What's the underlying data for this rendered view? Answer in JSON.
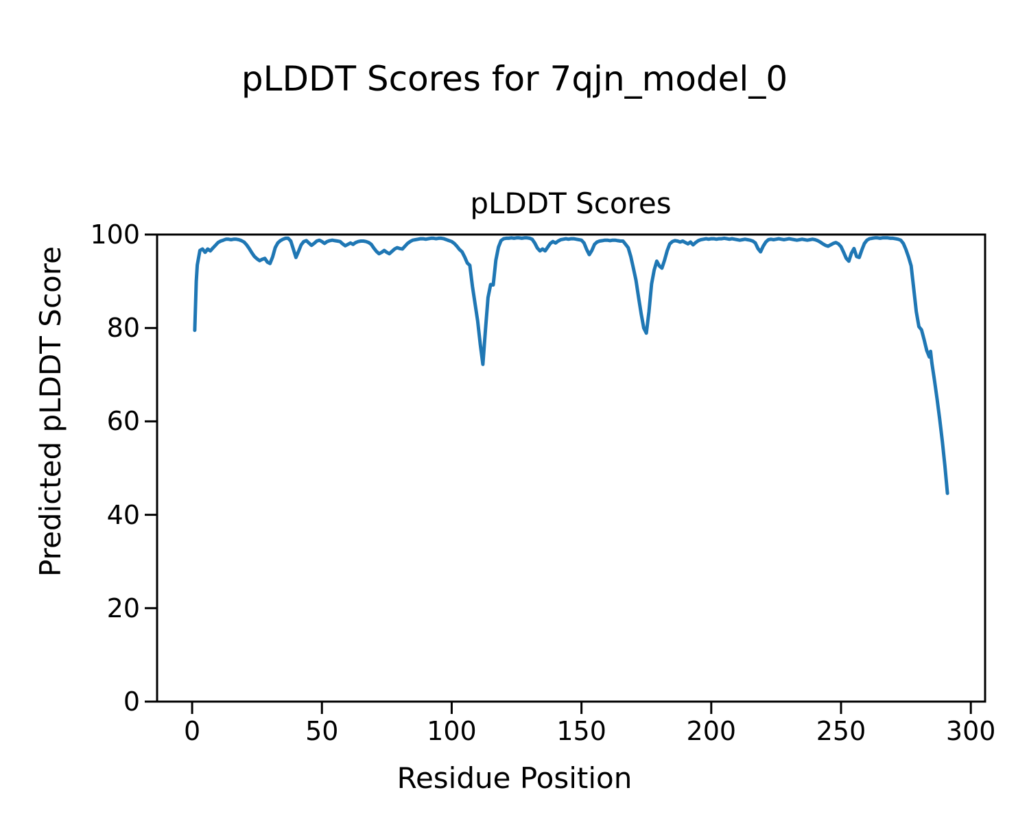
{
  "chart_data": {
    "type": "line",
    "suptitle": "pLDDT Scores for 7qjn_model_0",
    "title": "pLDDT Scores",
    "xlabel": "Residue Position",
    "ylabel": "Predicted pLDDT Score",
    "xlim": [
      -13.5,
      305.5
    ],
    "ylim": [
      0,
      100
    ],
    "xticks": [
      0,
      50,
      100,
      150,
      200,
      250,
      300
    ],
    "yticks": [
      0,
      20,
      40,
      60,
      80,
      100
    ],
    "grid": false,
    "legend": null,
    "line_color": "#1f77b4",
    "axis_color": "#000000",
    "series": [
      {
        "name": "pLDDT",
        "points": [
          [
            1,
            79.5
          ],
          [
            1.6,
            90.0
          ],
          [
            2,
            93.5
          ],
          [
            3,
            96.6
          ],
          [
            4,
            96.9
          ],
          [
            5,
            96.2
          ],
          [
            6,
            96.9
          ],
          [
            7,
            96.5
          ],
          [
            8,
            97.1
          ],
          [
            9,
            97.7
          ],
          [
            10,
            98.3
          ],
          [
            11,
            98.6
          ],
          [
            12,
            98.8
          ],
          [
            13,
            99.0
          ],
          [
            14,
            99.0
          ],
          [
            15,
            98.9
          ],
          [
            16,
            99.0
          ],
          [
            17,
            99.0
          ],
          [
            18,
            98.9
          ],
          [
            19,
            98.7
          ],
          [
            20,
            98.4
          ],
          [
            21,
            97.8
          ],
          [
            22,
            97.0
          ],
          [
            23,
            96.1
          ],
          [
            24,
            95.3
          ],
          [
            25,
            94.8
          ],
          [
            26,
            94.4
          ],
          [
            27,
            94.7
          ],
          [
            28,
            94.9
          ],
          [
            29,
            94.1
          ],
          [
            30,
            93.8
          ],
          [
            31,
            95.2
          ],
          [
            32,
            97.2
          ],
          [
            33,
            98.2
          ],
          [
            34,
            98.7
          ],
          [
            35,
            99.0
          ],
          [
            36,
            99.2
          ],
          [
            37,
            99.2
          ],
          [
            38,
            98.6
          ],
          [
            39,
            96.9
          ],
          [
            40,
            95.1
          ],
          [
            41,
            96.4
          ],
          [
            42,
            97.8
          ],
          [
            43,
            98.5
          ],
          [
            44,
            98.7
          ],
          [
            45,
            98.2
          ],
          [
            46,
            97.7
          ],
          [
            47,
            98.1
          ],
          [
            48,
            98.6
          ],
          [
            49,
            98.8
          ],
          [
            50,
            98.5
          ],
          [
            51,
            98.1
          ],
          [
            52,
            98.5
          ],
          [
            53,
            98.7
          ],
          [
            54,
            98.8
          ],
          [
            55,
            98.7
          ],
          [
            56,
            98.6
          ],
          [
            57,
            98.5
          ],
          [
            58,
            98.0
          ],
          [
            59,
            97.6
          ],
          [
            60,
            97.9
          ],
          [
            61,
            98.2
          ],
          [
            62,
            97.9
          ],
          [
            63,
            98.3
          ],
          [
            64,
            98.5
          ],
          [
            65,
            98.6
          ],
          [
            66,
            98.6
          ],
          [
            67,
            98.5
          ],
          [
            68,
            98.3
          ],
          [
            69,
            97.9
          ],
          [
            70,
            97.1
          ],
          [
            71,
            96.4
          ],
          [
            72,
            95.9
          ],
          [
            73,
            96.2
          ],
          [
            74,
            96.6
          ],
          [
            75,
            96.2
          ],
          [
            76,
            95.9
          ],
          [
            77,
            96.4
          ],
          [
            78,
            96.9
          ],
          [
            79,
            97.2
          ],
          [
            80,
            97.0
          ],
          [
            81,
            96.9
          ],
          [
            82,
            97.5
          ],
          [
            83,
            98.1
          ],
          [
            84,
            98.5
          ],
          [
            85,
            98.8
          ],
          [
            86,
            98.9
          ],
          [
            87,
            99.0
          ],
          [
            88,
            99.1
          ],
          [
            89,
            99.1
          ],
          [
            90,
            99.0
          ],
          [
            91,
            99.1
          ],
          [
            92,
            99.2
          ],
          [
            93,
            99.2
          ],
          [
            94,
            99.1
          ],
          [
            95,
            99.2
          ],
          [
            96,
            99.2
          ],
          [
            97,
            99.1
          ],
          [
            98,
            98.9
          ],
          [
            99,
            98.7
          ],
          [
            100,
            98.5
          ],
          [
            101,
            98.1
          ],
          [
            102,
            97.5
          ],
          [
            103,
            96.8
          ],
          [
            104,
            96.3
          ],
          [
            105,
            95.2
          ],
          [
            106,
            93.9
          ],
          [
            107,
            93.4
          ],
          [
            108,
            88.9
          ],
          [
            109,
            85.2
          ],
          [
            110,
            81.5
          ],
          [
            111,
            76.5
          ],
          [
            112,
            72.2
          ],
          [
            113,
            79.5
          ],
          [
            114,
            86.5
          ],
          [
            115,
            89.3
          ],
          [
            116,
            89.2
          ],
          [
            117,
            94.5
          ],
          [
            118,
            97.3
          ],
          [
            119,
            98.7
          ],
          [
            120,
            99.1
          ],
          [
            121,
            99.2
          ],
          [
            122,
            99.2
          ],
          [
            123,
            99.3
          ],
          [
            124,
            99.2
          ],
          [
            125,
            99.3
          ],
          [
            126,
            99.3
          ],
          [
            127,
            99.2
          ],
          [
            128,
            99.3
          ],
          [
            129,
            99.3
          ],
          [
            130,
            99.2
          ],
          [
            131,
            99.0
          ],
          [
            132,
            98.2
          ],
          [
            133,
            97.1
          ],
          [
            134,
            96.5
          ],
          [
            135,
            96.9
          ],
          [
            136,
            96.5
          ],
          [
            137,
            97.3
          ],
          [
            138,
            98.1
          ],
          [
            139,
            98.5
          ],
          [
            140,
            98.2
          ],
          [
            141,
            98.6
          ],
          [
            142,
            98.9
          ],
          [
            143,
            99.0
          ],
          [
            144,
            99.1
          ],
          [
            145,
            99.0
          ],
          [
            146,
            99.1
          ],
          [
            147,
            99.1
          ],
          [
            148,
            99.0
          ],
          [
            149,
            98.9
          ],
          [
            150,
            98.8
          ],
          [
            151,
            98.2
          ],
          [
            152,
            96.8
          ],
          [
            153,
            95.7
          ],
          [
            154,
            96.6
          ],
          [
            155,
            97.9
          ],
          [
            156,
            98.4
          ],
          [
            157,
            98.6
          ],
          [
            158,
            98.7
          ],
          [
            159,
            98.8
          ],
          [
            160,
            98.8
          ],
          [
            161,
            98.7
          ],
          [
            162,
            98.8
          ],
          [
            163,
            98.8
          ],
          [
            164,
            98.7
          ],
          [
            165,
            98.6
          ],
          [
            166,
            98.6
          ],
          [
            167,
            97.9
          ],
          [
            168,
            97.2
          ],
          [
            169,
            95.3
          ],
          [
            170,
            92.8
          ],
          [
            171,
            90.2
          ],
          [
            172,
            86.5
          ],
          [
            173,
            83.0
          ],
          [
            174,
            80.0
          ],
          [
            175,
            78.9
          ],
          [
            176,
            83.5
          ],
          [
            177,
            89.4
          ],
          [
            178,
            92.4
          ],
          [
            179,
            94.3
          ],
          [
            180,
            93.3
          ],
          [
            181,
            92.8
          ],
          [
            182,
            94.5
          ],
          [
            183,
            96.5
          ],
          [
            184,
            98.0
          ],
          [
            185,
            98.5
          ],
          [
            186,
            98.7
          ],
          [
            187,
            98.6
          ],
          [
            188,
            98.4
          ],
          [
            189,
            98.6
          ],
          [
            190,
            98.3
          ],
          [
            191,
            98.0
          ],
          [
            192,
            98.4
          ],
          [
            193,
            97.8
          ],
          [
            194,
            98.3
          ],
          [
            195,
            98.7
          ],
          [
            196,
            98.9
          ],
          [
            197,
            99.0
          ],
          [
            198,
            99.1
          ],
          [
            199,
            99.0
          ],
          [
            200,
            99.1
          ],
          [
            201,
            99.1
          ],
          [
            202,
            99.0
          ],
          [
            203,
            99.1
          ],
          [
            204,
            99.1
          ],
          [
            205,
            99.2
          ],
          [
            206,
            99.1
          ],
          [
            207,
            99.0
          ],
          [
            208,
            99.1
          ],
          [
            209,
            99.0
          ],
          [
            210,
            98.9
          ],
          [
            211,
            98.8
          ],
          [
            212,
            98.9
          ],
          [
            213,
            99.0
          ],
          [
            214,
            98.9
          ],
          [
            215,
            98.8
          ],
          [
            216,
            98.6
          ],
          [
            217,
            98.2
          ],
          [
            218,
            97.0
          ],
          [
            219,
            96.3
          ],
          [
            220,
            97.5
          ],
          [
            221,
            98.4
          ],
          [
            222,
            98.9
          ],
          [
            223,
            99.0
          ],
          [
            224,
            98.9
          ],
          [
            225,
            99.0
          ],
          [
            226,
            99.1
          ],
          [
            227,
            99.0
          ],
          [
            228,
            98.9
          ],
          [
            229,
            99.0
          ],
          [
            230,
            99.1
          ],
          [
            231,
            99.0
          ],
          [
            232,
            98.9
          ],
          [
            233,
            98.8
          ],
          [
            234,
            98.9
          ],
          [
            235,
            99.0
          ],
          [
            236,
            98.9
          ],
          [
            237,
            98.8
          ],
          [
            238,
            98.9
          ],
          [
            239,
            99.0
          ],
          [
            240,
            98.9
          ],
          [
            241,
            98.7
          ],
          [
            242,
            98.4
          ],
          [
            243,
            98.0
          ],
          [
            244,
            97.7
          ],
          [
            245,
            97.5
          ],
          [
            246,
            97.8
          ],
          [
            247,
            98.1
          ],
          [
            248,
            98.3
          ],
          [
            249,
            98.0
          ],
          [
            250,
            97.4
          ],
          [
            251,
            96.2
          ],
          [
            252,
            94.9
          ],
          [
            253,
            94.3
          ],
          [
            254,
            96.0
          ],
          [
            255,
            97.0
          ],
          [
            256,
            95.3
          ],
          [
            257,
            95.1
          ],
          [
            258,
            96.7
          ],
          [
            259,
            98.1
          ],
          [
            260,
            98.8
          ],
          [
            261,
            99.1
          ],
          [
            262,
            99.2
          ],
          [
            263,
            99.3
          ],
          [
            264,
            99.3
          ],
          [
            265,
            99.2
          ],
          [
            266,
            99.3
          ],
          [
            267,
            99.3
          ],
          [
            268,
            99.3
          ],
          [
            269,
            99.2
          ],
          [
            270,
            99.2
          ],
          [
            271,
            99.1
          ],
          [
            272,
            99.0
          ],
          [
            273,
            98.8
          ],
          [
            274,
            98.1
          ],
          [
            275,
            96.8
          ],
          [
            276,
            95.2
          ],
          [
            277,
            93.3
          ],
          [
            278,
            88.5
          ],
          [
            279,
            83.5
          ],
          [
            280,
            80.3
          ],
          [
            281,
            79.6
          ],
          [
            282,
            77.5
          ],
          [
            283,
            75.2
          ],
          [
            284,
            73.8
          ],
          [
            284.5,
            75.0
          ],
          [
            285,
            72.5
          ],
          [
            286,
            68.8
          ],
          [
            287,
            64.8
          ],
          [
            288,
            60.5
          ],
          [
            289,
            55.8
          ],
          [
            290,
            50.5
          ],
          [
            291,
            44.6
          ]
        ]
      }
    ]
  }
}
